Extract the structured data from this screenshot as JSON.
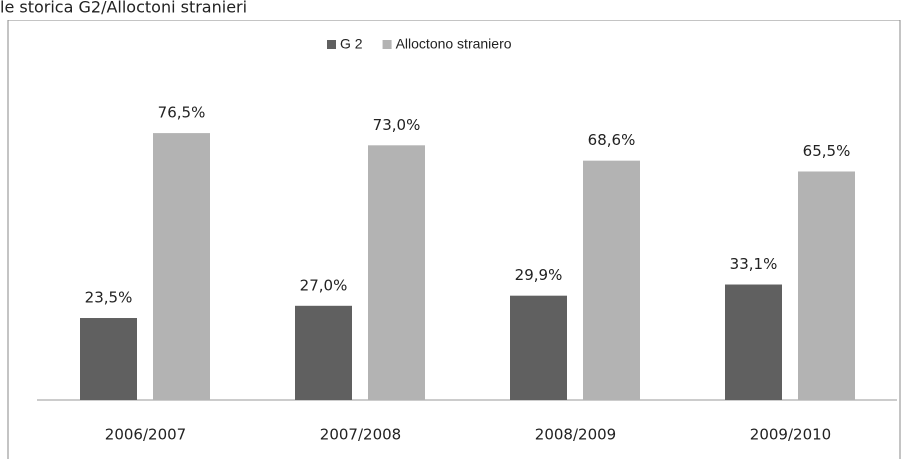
{
  "chart_data": {
    "type": "bar",
    "title": "le storica G2/Alloctoni stranieri",
    "categories": [
      "2006/2007",
      "2007/2008",
      "2008/2009",
      "2009/2010"
    ],
    "series": [
      {
        "name": "G 2",
        "color": "#606060",
        "values": [
          23.5,
          27.0,
          29.9,
          33.1
        ],
        "value_labels": [
          "23,5%",
          "27,0%",
          "29,9%",
          "33,1%"
        ]
      },
      {
        "name": "Alloctono straniero",
        "color": "#b3b3b3",
        "values": [
          76.5,
          73.0,
          68.6,
          65.5
        ],
        "value_labels": [
          "76,5%",
          "73,0%",
          "68,6%",
          "65,5%"
        ]
      }
    ],
    "ylim": [
      0,
      90
    ],
    "legend": "top"
  }
}
